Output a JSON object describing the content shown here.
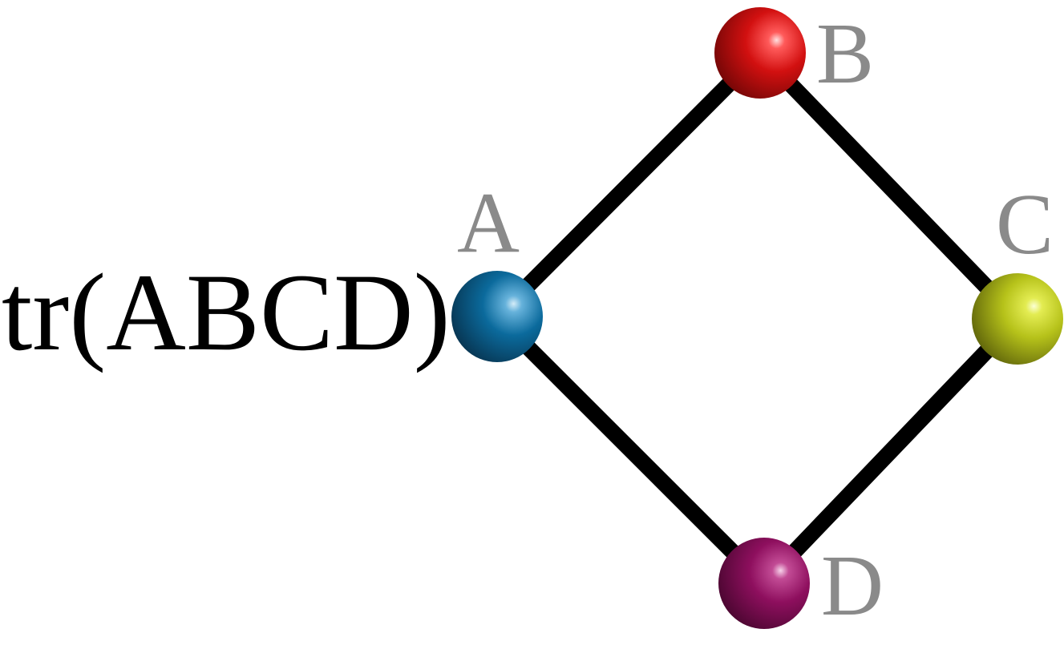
{
  "formula": "tr(ABCD)",
  "nodes": [
    {
      "id": "A",
      "label": "A",
      "color": "#0b6a9c"
    },
    {
      "id": "B",
      "label": "B",
      "color": "#d21010"
    },
    {
      "id": "C",
      "label": "C",
      "color": "#b6c21a"
    },
    {
      "id": "D",
      "label": "D",
      "color": "#8e0f5e"
    }
  ],
  "edges": [
    [
      "A",
      "B"
    ],
    [
      "B",
      "C"
    ],
    [
      "C",
      "D"
    ],
    [
      "D",
      "A"
    ]
  ],
  "colors": {
    "edge": "#000000",
    "label": "#8a8a8a",
    "formula": "#000000"
  }
}
